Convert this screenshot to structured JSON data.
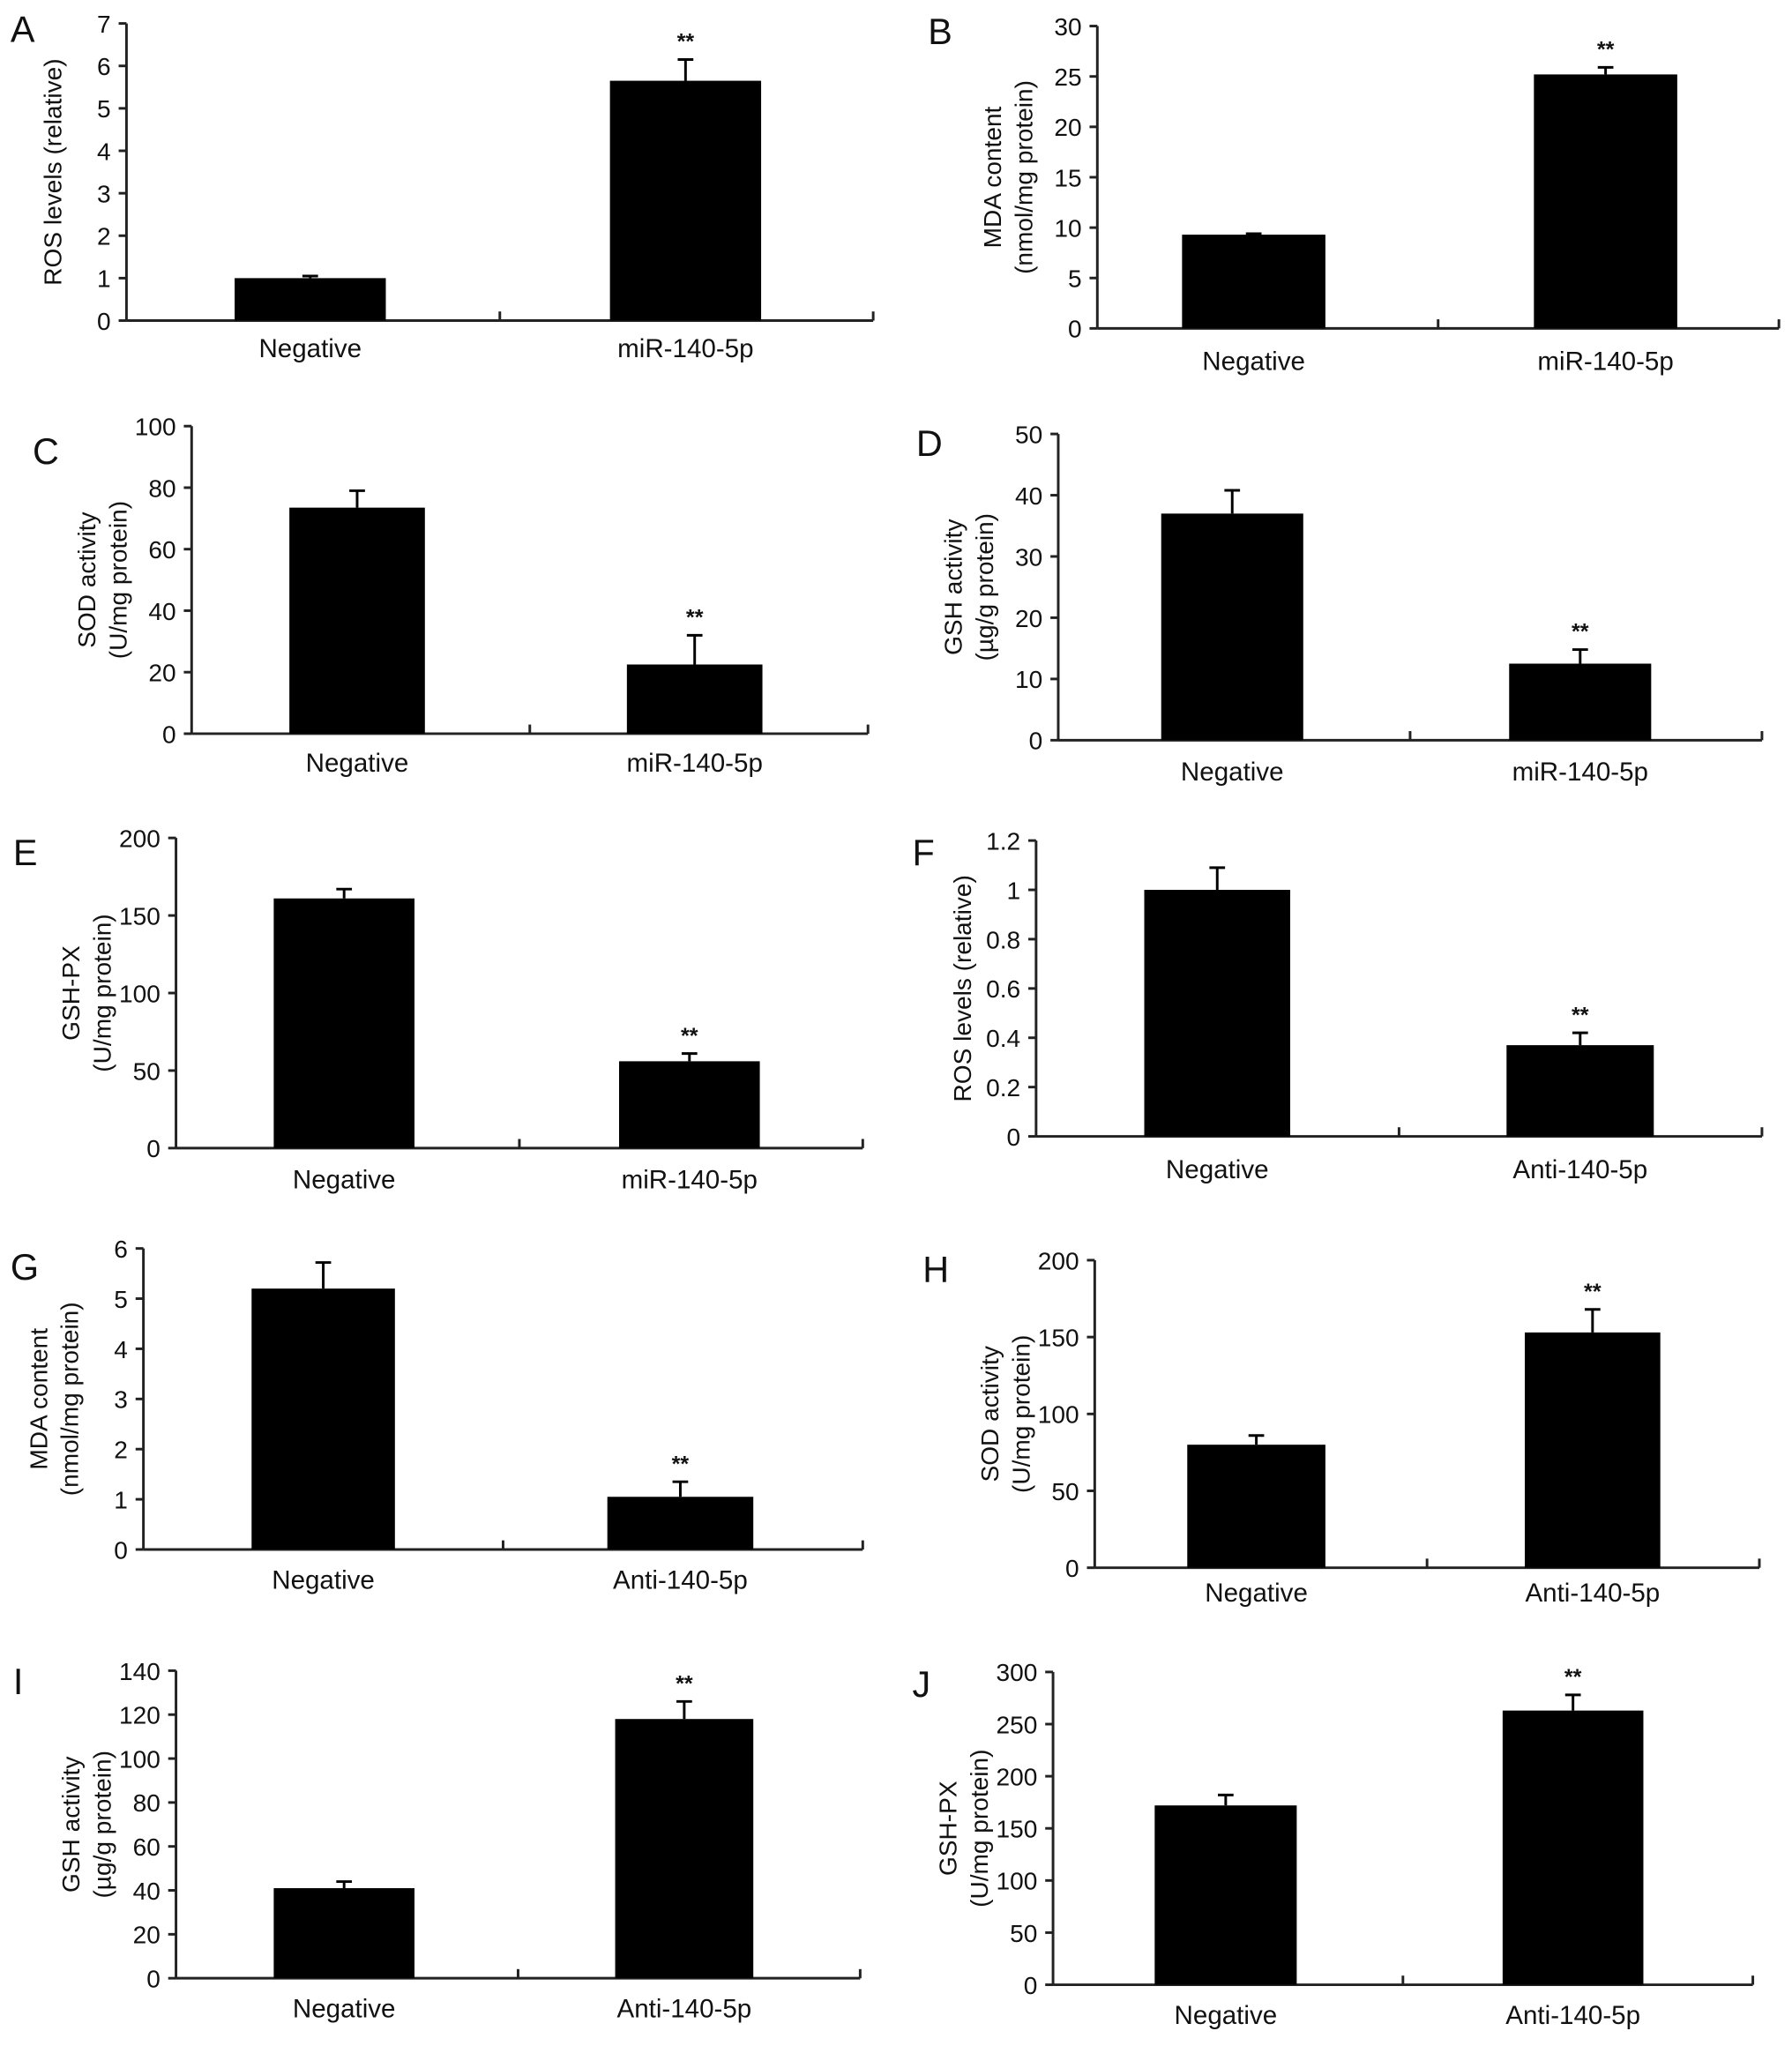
{
  "chart_data": [
    {
      "panel": "A",
      "type": "bar",
      "ylabel": [
        "ROS levels (relative)"
      ],
      "categories": [
        "Negative",
        "miR-140-5p"
      ],
      "values": [
        1.0,
        5.65
      ],
      "errors": [
        0.05,
        0.5
      ],
      "significance": [
        "",
        "**"
      ],
      "ylim": [
        0,
        7
      ],
      "yticks": [
        0,
        1,
        2,
        3,
        4,
        5,
        6,
        7
      ]
    },
    {
      "panel": "B",
      "type": "bar",
      "ylabel": [
        "MDA content",
        "(nmol/mg protein)"
      ],
      "categories": [
        "Negative",
        "miR-140-5p"
      ],
      "values": [
        9.3,
        25.2
      ],
      "errors": [
        0.1,
        0.7
      ],
      "significance": [
        "",
        "**"
      ],
      "ylim": [
        0,
        30
      ],
      "yticks": [
        0,
        5,
        10,
        15,
        20,
        25,
        30
      ]
    },
    {
      "panel": "C",
      "type": "bar",
      "ylabel": [
        "SOD activity",
        "(U/mg protein)"
      ],
      "categories": [
        "Negative",
        "miR-140-5p"
      ],
      "values": [
        73.5,
        22.5
      ],
      "errors": [
        5.5,
        9.5
      ],
      "significance": [
        "",
        "**"
      ],
      "ylim": [
        0,
        100
      ],
      "yticks": [
        0,
        20,
        40,
        60,
        80,
        100
      ]
    },
    {
      "panel": "D",
      "type": "bar",
      "ylabel": [
        "GSH activity",
        "(µg/g protein)"
      ],
      "categories": [
        "Negative",
        "miR-140-5p"
      ],
      "values": [
        37,
        12.5
      ],
      "errors": [
        3.8,
        2.3
      ],
      "significance": [
        "",
        "**"
      ],
      "ylim": [
        0,
        50
      ],
      "yticks": [
        0,
        10,
        20,
        30,
        40,
        50
      ]
    },
    {
      "panel": "E",
      "type": "bar",
      "ylabel": [
        "GSH-PX",
        "(U/mg protein)"
      ],
      "categories": [
        "Negative",
        "miR-140-5p"
      ],
      "values": [
        161,
        56
      ],
      "errors": [
        6,
        5
      ],
      "significance": [
        "",
        "**"
      ],
      "ylim": [
        0,
        200
      ],
      "yticks": [
        0,
        50,
        100,
        150,
        200
      ]
    },
    {
      "panel": "F",
      "type": "bar",
      "ylabel": [
        "ROS levels (relative)"
      ],
      "categories": [
        "Negative",
        "Anti-140-5p"
      ],
      "values": [
        1.0,
        0.37
      ],
      "errors": [
        0.09,
        0.05
      ],
      "significance": [
        "",
        "**"
      ],
      "ylim": [
        0,
        1.2
      ],
      "yticks": [
        0,
        0.2,
        0.4,
        0.6,
        0.8,
        1,
        1.2
      ]
    },
    {
      "panel": "G",
      "type": "bar",
      "ylabel": [
        "MDA content",
        "(nmol/mg protein)"
      ],
      "categories": [
        "Negative",
        "Anti-140-5p"
      ],
      "values": [
        5.2,
        1.05
      ],
      "errors": [
        0.52,
        0.3
      ],
      "significance": [
        "",
        "**"
      ],
      "ylim": [
        0,
        6
      ],
      "yticks": [
        0,
        1,
        2,
        3,
        4,
        5,
        6
      ]
    },
    {
      "panel": "H",
      "type": "bar",
      "ylabel": [
        "SOD activity",
        "(U/mg protein)"
      ],
      "categories": [
        "Negative",
        "Anti-140-5p"
      ],
      "values": [
        80,
        153
      ],
      "errors": [
        6,
        15
      ],
      "significance": [
        "",
        "**"
      ],
      "ylim": [
        0,
        200
      ],
      "yticks": [
        0,
        50,
        100,
        150,
        200
      ]
    },
    {
      "panel": "I",
      "type": "bar",
      "ylabel": [
        "GSH activity",
        "(µg/g protein)"
      ],
      "categories": [
        "Negative",
        "Anti-140-5p"
      ],
      "values": [
        41,
        118
      ],
      "errors": [
        3,
        8
      ],
      "significance": [
        "",
        "**"
      ],
      "ylim": [
        0,
        140
      ],
      "yticks": [
        0,
        20,
        40,
        60,
        80,
        100,
        120,
        140
      ]
    },
    {
      "panel": "J",
      "type": "bar",
      "ylabel": [
        "GSH-PX",
        "(U/mg protein)"
      ],
      "categories": [
        "Negative",
        "Anti-140-5p"
      ],
      "values": [
        172,
        263
      ],
      "errors": [
        10,
        15
      ],
      "significance": [
        "",
        "**"
      ],
      "ylim": [
        0,
        300
      ],
      "yticks": [
        0,
        50,
        100,
        150,
        200,
        250,
        300
      ]
    }
  ],
  "colors": {
    "bar": "#000000",
    "axis": "#222222"
  }
}
